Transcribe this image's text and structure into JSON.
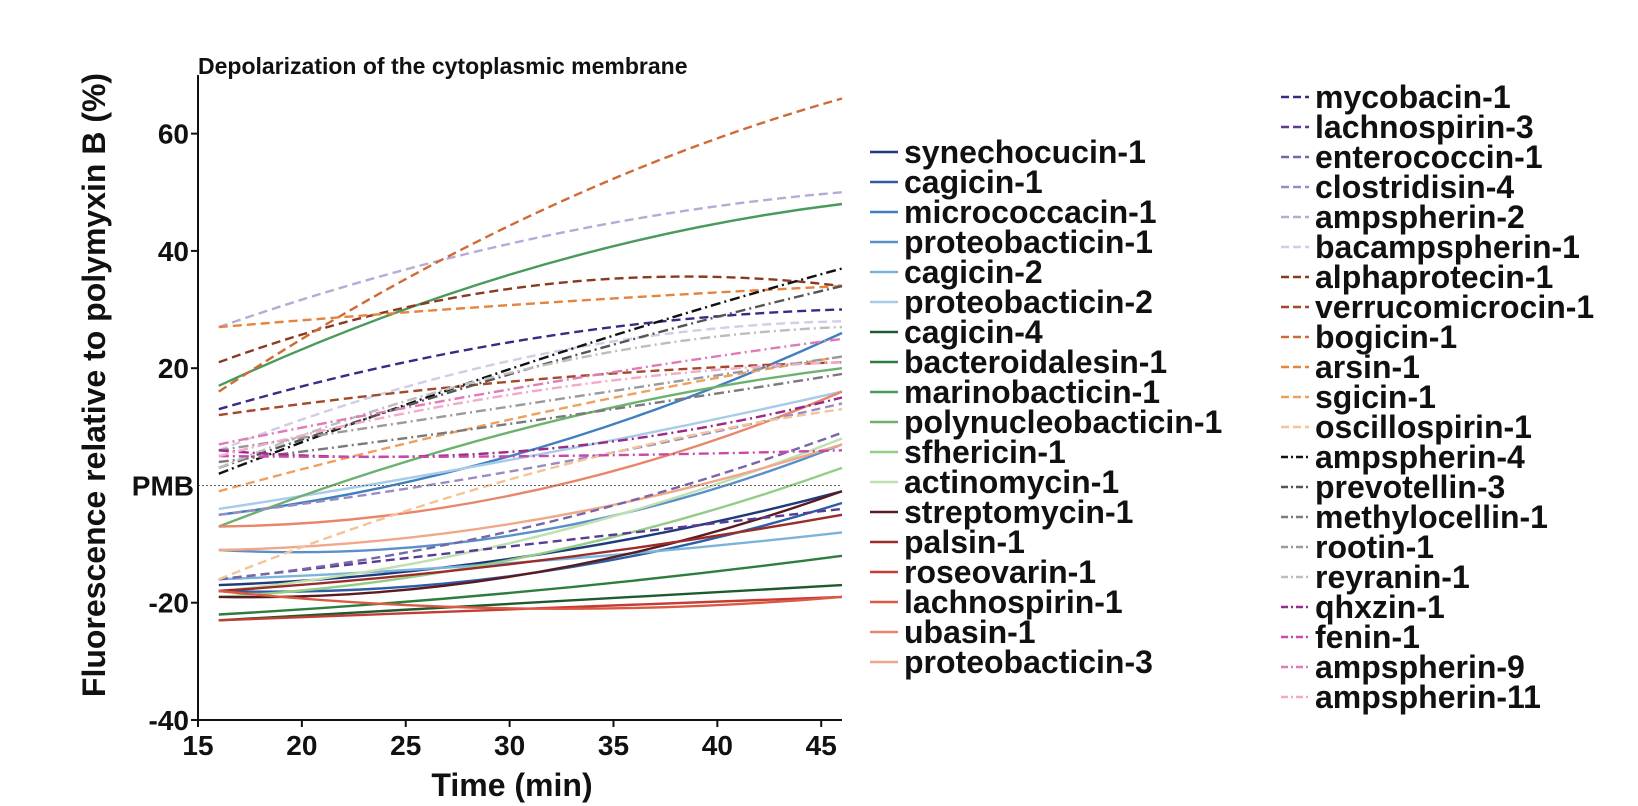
{
  "chart_data": {
    "type": "line",
    "title": "Depolarization of the cytoplasmic membrane",
    "xlabel": "Time (min)",
    "ylabel": "Fluorescence relative to polymyxin B (%)",
    "xlim": [
      15,
      46
    ],
    "ylim": [
      -40,
      70
    ],
    "x_ticks": [
      15,
      20,
      25,
      30,
      35,
      40,
      45
    ],
    "y_ticks": [
      -40,
      -20,
      20,
      40,
      60
    ],
    "y_ticks_text": [
      "-40",
      "-20",
      "20",
      "40",
      "60"
    ],
    "x_ticks_text": [
      "15",
      "20",
      "25",
      "30",
      "35",
      "40",
      "45"
    ],
    "reference_line": {
      "y": 0,
      "label": "PMB"
    },
    "grid": false,
    "legend_position": "right",
    "x": [
      16,
      31,
      46
    ],
    "series": [
      {
        "name": "synechocucin-1",
        "color": "#1f3a7a",
        "dash": "solid",
        "values": [
          -17,
          -12,
          -1
        ]
      },
      {
        "name": "cagicin-1",
        "color": "#2c5ea6",
        "dash": "solid",
        "values": [
          -18,
          -15,
          -3
        ]
      },
      {
        "name": "micrococcacin-1",
        "color": "#3f7fc0",
        "dash": "solid",
        "values": [
          -5,
          6,
          26
        ]
      },
      {
        "name": "proteobacticin-1",
        "color": "#5b8fc7",
        "dash": "solid",
        "values": [
          -11,
          -8,
          7
        ]
      },
      {
        "name": "cagicin-2",
        "color": "#7bb3dc",
        "dash": "solid",
        "values": [
          -16,
          -13,
          -8
        ]
      },
      {
        "name": "proteobacticin-2",
        "color": "#a7cbe8",
        "dash": "solid",
        "values": [
          -4,
          5,
          16
        ]
      },
      {
        "name": "cagicin-4",
        "color": "#1e5a2e",
        "dash": "solid",
        "values": [
          -23,
          -20,
          -17
        ]
      },
      {
        "name": "bacteroidalesin-1",
        "color": "#2e7d3e",
        "dash": "solid",
        "values": [
          -22,
          -18,
          -12
        ]
      },
      {
        "name": "marinobacticin-1",
        "color": "#4a9a5c",
        "dash": "solid",
        "values": [
          17,
          37,
          48
        ]
      },
      {
        "name": "polynucleobacticin-1",
        "color": "#6cb26f",
        "dash": "solid",
        "values": [
          -7,
          10,
          20
        ]
      },
      {
        "name": "sfhericin-1",
        "color": "#94cc88",
        "dash": "solid",
        "values": [
          -19,
          -12,
          3
        ]
      },
      {
        "name": "actinomycin-1",
        "color": "#bfe0b0",
        "dash": "solid",
        "values": [
          -18,
          -9,
          8
        ]
      },
      {
        "name": "streptomycin-1",
        "color": "#5a1a22",
        "dash": "solid",
        "values": [
          -19,
          -15,
          -1
        ]
      },
      {
        "name": "palsin-1",
        "color": "#9c2c2a",
        "dash": "solid",
        "values": [
          -18,
          -13,
          -5
        ]
      },
      {
        "name": "roseovarin-1",
        "color": "#c43c32",
        "dash": "solid",
        "values": [
          -23,
          -21,
          -19
        ]
      },
      {
        "name": "lachnospirin-1",
        "color": "#dc5a45",
        "dash": "solid",
        "values": [
          -18,
          -21,
          -19
        ]
      },
      {
        "name": "ubasin-1",
        "color": "#e8866a",
        "dash": "solid",
        "values": [
          -7,
          -1,
          16
        ]
      },
      {
        "name": "proteobacticin-3",
        "color": "#f0a888",
        "dash": "solid",
        "values": [
          -11,
          -6,
          7
        ]
      },
      {
        "name": "mycobacin-1",
        "color": "#3a2a86",
        "dash": "dashed",
        "values": [
          13,
          25,
          30
        ]
      },
      {
        "name": "lachnospirin-3",
        "color": "#5a3c94",
        "dash": "dashed",
        "values": [
          -16,
          -10,
          -4
        ]
      },
      {
        "name": "enterococcin-1",
        "color": "#7866aa",
        "dash": "dashed",
        "values": [
          -16,
          -7,
          9
        ]
      },
      {
        "name": "clostridisin-4",
        "color": "#9a8cc2",
        "dash": "dashed",
        "values": [
          -5,
          3,
          14
        ]
      },
      {
        "name": "ampspherin-2",
        "color": "#b4acd6",
        "dash": "dashed",
        "values": [
          27,
          42,
          50
        ]
      },
      {
        "name": "bacampspherin-1",
        "color": "#d2cde6",
        "dash": "dashed",
        "values": [
          6,
          22,
          28
        ]
      },
      {
        "name": "alphaprotecin-1",
        "color": "#8a3a22",
        "dash": "dashed",
        "values": [
          21,
          34,
          34
        ]
      },
      {
        "name": "verrucomicrocin-1",
        "color": "#a4482a",
        "dash": "dashed",
        "values": [
          12,
          18,
          21
        ]
      },
      {
        "name": "bogicin-1",
        "color": "#d06a36",
        "dash": "dashed",
        "values": [
          16,
          46,
          66
        ]
      },
      {
        "name": "arsin-1",
        "color": "#e4843e",
        "dash": "dashed",
        "values": [
          27,
          31,
          34
        ]
      },
      {
        "name": "sgicin-1",
        "color": "#eea060",
        "dash": "dashed",
        "values": [
          -1,
          12,
          22
        ]
      },
      {
        "name": "oscillospirin-1",
        "color": "#f4c496",
        "dash": "dashed",
        "values": [
          -16,
          2,
          13
        ]
      },
      {
        "name": "ampspherin-4",
        "color": "#111111",
        "dash": "dashdot",
        "values": [
          2,
          21,
          37
        ]
      },
      {
        "name": "prevotellin-3",
        "color": "#555555",
        "dash": "dashdot",
        "values": [
          3,
          20,
          34
        ]
      },
      {
        "name": "methylocellin-1",
        "color": "#7a7a7a",
        "dash": "dashdot",
        "values": [
          4,
          11,
          19
        ]
      },
      {
        "name": "rootin-1",
        "color": "#9a9a9a",
        "dash": "dashdot",
        "values": [
          6,
          14,
          22
        ]
      },
      {
        "name": "reyranin-1",
        "color": "#bdbdbd",
        "dash": "dashdot",
        "values": [
          3,
          20,
          27
        ]
      },
      {
        "name": "qhxzin-1",
        "color": "#9a2a8a",
        "dash": "dashdot",
        "values": [
          6,
          6,
          15
        ]
      },
      {
        "name": "fenin-1",
        "color": "#c84aa8",
        "dash": "dashdot",
        "values": [
          5,
          5,
          6
        ]
      },
      {
        "name": "ampspherin-9",
        "color": "#e07ab8",
        "dash": "dashdot",
        "values": [
          7,
          17,
          25
        ]
      },
      {
        "name": "ampspherin-11",
        "color": "#f2aacb",
        "dash": "dashdot",
        "values": [
          5,
          16,
          21
        ]
      }
    ]
  }
}
